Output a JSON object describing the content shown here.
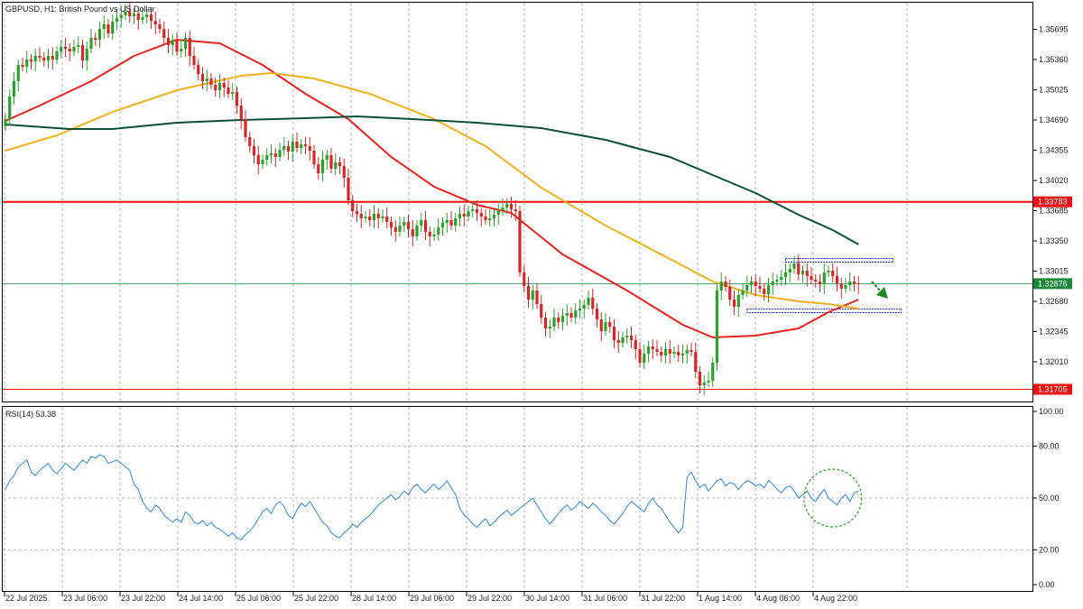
{
  "chart_data": [
    {
      "type": "candlestick",
      "title": "GBPUSD, H1:  British Pound vs US Dollar",
      "symbol": "GBPUSD",
      "timeframe": "H1",
      "description": "British Pound vs US Dollar",
      "y_ticks": [
        "1.35695",
        "1.35360",
        "1.35025",
        "1.34690",
        "1.34355",
        "1.34020",
        "1.33685",
        "1.33350",
        "1.33015",
        "1.32680",
        "1.32345",
        "1.32010"
      ],
      "x_ticks": [
        "22 Jul 2025",
        "23 Jul 06:00",
        "23 Jul 22:00",
        "24 Jul 14:00",
        "25 Jul 06:00",
        "25 Jul 22:00",
        "28 Jul 14:00",
        "29 Jul 06:00",
        "29 Jul 22:00",
        "30 Jul 14:00",
        "31 Jul 06:00",
        "31 Jul 22:00",
        "1 Aug 14:00",
        "4 Aug 06:00",
        "4 Aug 22:00"
      ],
      "ylim": [
        1.3157,
        1.3599
      ],
      "grid": true,
      "price_lines": [
        {
          "label": "1.33783",
          "value": 1.33783,
          "color": "#ee1111"
        },
        {
          "label": "1.32876",
          "value": 1.32876,
          "color": "#1a8a3a"
        },
        {
          "label": "1.31705",
          "value": 1.31705,
          "color": "#ee1111"
        }
      ],
      "close_series": [
        1.347,
        1.3495,
        1.3512,
        1.353,
        1.3528,
        1.3536,
        1.3534,
        1.354,
        1.3538,
        1.3535,
        1.354,
        1.3536,
        1.3545,
        1.355,
        1.3548,
        1.3545,
        1.355,
        1.3552,
        1.3535,
        1.3548,
        1.356,
        1.3558,
        1.357,
        1.3575,
        1.3565,
        1.3578,
        1.3582,
        1.3585,
        1.3589,
        1.3584,
        1.3587,
        1.358,
        1.3583,
        1.3586,
        1.3579,
        1.3575,
        1.357,
        1.356,
        1.3552,
        1.3558,
        1.3545,
        1.3548,
        1.356,
        1.354,
        1.353,
        1.352,
        1.3512,
        1.3515,
        1.3508,
        1.3502,
        1.351,
        1.3505,
        1.3498,
        1.35,
        1.3485,
        1.347,
        1.345,
        1.344,
        1.343,
        1.342,
        1.3425,
        1.343,
        1.3432,
        1.3428,
        1.3436,
        1.344,
        1.3434,
        1.3445,
        1.3438,
        1.3442,
        1.344,
        1.3435,
        1.342,
        1.341,
        1.3425,
        1.343,
        1.3415,
        1.3422,
        1.3418,
        1.3405,
        1.338,
        1.3368,
        1.3365,
        1.336,
        1.3362,
        1.3358,
        1.3365,
        1.336,
        1.3362,
        1.3356,
        1.335,
        1.3345,
        1.3352,
        1.3356,
        1.3348,
        1.334,
        1.3352,
        1.3358,
        1.3345,
        1.334,
        1.3342,
        1.335,
        1.3355,
        1.3358,
        1.3352,
        1.336,
        1.3365,
        1.3362,
        1.3368,
        1.337,
        1.3366,
        1.3362,
        1.3358,
        1.336,
        1.3364,
        1.3368,
        1.3372,
        1.3376,
        1.337,
        1.3368,
        1.33,
        1.3285,
        1.327,
        1.328,
        1.3265,
        1.325,
        1.3238,
        1.324,
        1.325,
        1.3245,
        1.3252,
        1.3255,
        1.325,
        1.3258,
        1.326,
        1.3264,
        1.3272,
        1.326,
        1.3248,
        1.3235,
        1.3245,
        1.324,
        1.3225,
        1.3222,
        1.3228,
        1.323,
        1.3225,
        1.3215,
        1.32,
        1.321,
        1.3218,
        1.3215,
        1.3212,
        1.3208,
        1.3215,
        1.321,
        1.3212,
        1.3208,
        1.321,
        1.3214,
        1.3212,
        1.319,
        1.3175,
        1.3178,
        1.318,
        1.32,
        1.328,
        1.329,
        1.3284,
        1.327,
        1.3262,
        1.3275,
        1.328,
        1.3286,
        1.329,
        1.3285,
        1.3282,
        1.3276,
        1.3286,
        1.329,
        1.3292,
        1.3295,
        1.33,
        1.3304,
        1.331,
        1.3298,
        1.3302,
        1.3296,
        1.3292,
        1.329,
        1.3287,
        1.33,
        1.3302,
        1.3296,
        1.3288,
        1.3282,
        1.3286,
        1.329,
        1.3288,
        1.3287
      ],
      "moving_averages": [
        {
          "color": "#e8231b",
          "points": [
            [
              0,
              1.3468
            ],
            [
              8,
              1.3485
            ],
            [
              20,
              1.3512
            ],
            [
              30,
              1.354
            ],
            [
              40,
              1.3558
            ],
            [
              50,
              1.3554
            ],
            [
              60,
              1.353
            ],
            [
              70,
              1.3498
            ],
            [
              80,
              1.347
            ],
            [
              90,
              1.3428
            ],
            [
              100,
              1.3395
            ],
            [
              110,
              1.3375
            ],
            [
              118,
              1.3366
            ],
            [
              130,
              1.332
            ],
            [
              145,
              1.328
            ],
            [
              158,
              1.3242
            ],
            [
              165,
              1.3228
            ],
            [
              175,
              1.323
            ],
            [
              185,
              1.3238
            ],
            [
              192,
              1.3256
            ],
            [
              199,
              1.327
            ]
          ]
        },
        {
          "color": "#f2b01e",
          "points": [
            [
              0,
              1.3435
            ],
            [
              12,
              1.3452
            ],
            [
              25,
              1.3478
            ],
            [
              40,
              1.3502
            ],
            [
              55,
              1.3518
            ],
            [
              62,
              1.3521
            ],
            [
              72,
              1.3515
            ],
            [
              85,
              1.3498
            ],
            [
              100,
              1.347
            ],
            [
              112,
              1.344
            ],
            [
              125,
              1.3394
            ],
            [
              140,
              1.3352
            ],
            [
              155,
              1.3315
            ],
            [
              165,
              1.329
            ],
            [
              175,
              1.3275
            ],
            [
              185,
              1.3268
            ],
            [
              192,
              1.3265
            ],
            [
              199,
              1.326
            ]
          ]
        },
        {
          "color": "#0d4f3a",
          "points": [
            [
              0,
              1.3464
            ],
            [
              15,
              1.3459
            ],
            [
              25,
              1.3459
            ],
            [
              40,
              1.3466
            ],
            [
              55,
              1.3469
            ],
            [
              70,
              1.3471
            ],
            [
              82,
              1.3473
            ],
            [
              95,
              1.347
            ],
            [
              110,
              1.3466
            ],
            [
              125,
              1.346
            ],
            [
              140,
              1.3447
            ],
            [
              155,
              1.3428
            ],
            [
              165,
              1.3408
            ],
            [
              175,
              1.3388
            ],
            [
              185,
              1.3364
            ],
            [
              193,
              1.3347
            ],
            [
              199,
              1.3331
            ]
          ]
        }
      ],
      "annotation_zones": [
        {
          "x_start": 182,
          "x_end": 207,
          "y": 1.33135
        },
        {
          "x_start": 173,
          "x_end": 209,
          "y": 1.32575
        }
      ]
    },
    {
      "type": "line",
      "title": "RSI(14) 53.38",
      "indicator": "RSI(14)",
      "value_label": "53.38",
      "y_ticks": [
        "100.00",
        "80.00",
        "50.00",
        "20.00",
        "0.00"
      ],
      "ylim": [
        0,
        100
      ],
      "levels": [
        80,
        50,
        20
      ],
      "series": [
        {
          "values": [
            55,
            60,
            63,
            68,
            70,
            72,
            65,
            63,
            66,
            68,
            70,
            66,
            64,
            67,
            70,
            68,
            66,
            69,
            72,
            70,
            74,
            73,
            75,
            74,
            70,
            71,
            72,
            70,
            68,
            66,
            58,
            55,
            48,
            44,
            42,
            46,
            44,
            40,
            38,
            36,
            38,
            36,
            42,
            40,
            36,
            35,
            37,
            34,
            36,
            33,
            32,
            30,
            28,
            30,
            27,
            26,
            29,
            31,
            34,
            38,
            42,
            44,
            41,
            46,
            48,
            45,
            40,
            38,
            43,
            47,
            45,
            48,
            44,
            40,
            36,
            34,
            30,
            28,
            27,
            30,
            32,
            35,
            33,
            36,
            38,
            40,
            43,
            46,
            48,
            50,
            52,
            49,
            51,
            54,
            52,
            56,
            58,
            55,
            53,
            56,
            58,
            55,
            57,
            60,
            56,
            52,
            44,
            40,
            38,
            35,
            33,
            36,
            38,
            34,
            36,
            39,
            41,
            43,
            40,
            42,
            44,
            46,
            48,
            50,
            46,
            42,
            38,
            35,
            38,
            41,
            44,
            46,
            43,
            45,
            48,
            46,
            44,
            47,
            45,
            42,
            40,
            37,
            35,
            38,
            41,
            45,
            48,
            46,
            44,
            42,
            47,
            50,
            46,
            44,
            40,
            36,
            33,
            30,
            33,
            62,
            65,
            60,
            56,
            58,
            54,
            57,
            60,
            61,
            57,
            59,
            58,
            55,
            58,
            60,
            59,
            57,
            58,
            56,
            60,
            58,
            55,
            53,
            56,
            57,
            54,
            50,
            52,
            54,
            50,
            48,
            52,
            55,
            50,
            48,
            46,
            50,
            52,
            48,
            53,
            54
          ]
        }
      ],
      "highlight": {
        "x_center": 193,
        "value": 50
      }
    }
  ]
}
